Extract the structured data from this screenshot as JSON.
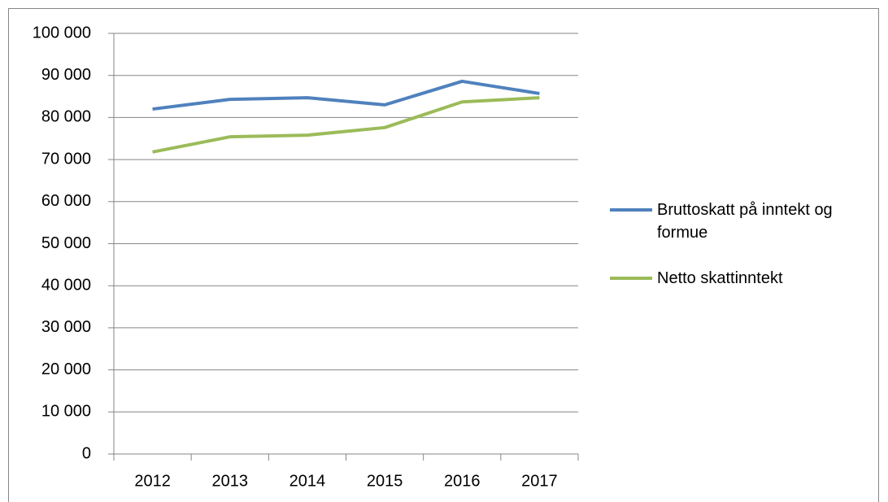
{
  "chart_data": {
    "type": "line",
    "categories": [
      "2012",
      "2013",
      "2014",
      "2015",
      "2016",
      "2017"
    ],
    "series": [
      {
        "name": "Bruttoskatt på inntekt og formue",
        "color": "#4f81bd",
        "values": [
          82000,
          84300,
          84700,
          83000,
          88600,
          85700
        ]
      },
      {
        "name": "Netto skattinntekt",
        "color": "#9bbb59",
        "values": [
          71800,
          75400,
          75800,
          77600,
          83700,
          84700
        ]
      }
    ],
    "ylim": [
      0,
      100000
    ],
    "yticks": [
      0,
      {
        "value": 10000,
        "label": "10 000"
      },
      {
        "value": 20000,
        "label": "20 000"
      },
      {
        "value": 30000,
        "label": "30 000"
      },
      {
        "value": 40000,
        "label": "40 000"
      },
      {
        "value": 50000,
        "label": "50 000"
      },
      {
        "value": 60000,
        "label": "60 000"
      },
      {
        "value": 70000,
        "label": "70 000"
      },
      {
        "value": 80000,
        "label": "80 000"
      },
      {
        "value": 90000,
        "label": "90 000"
      },
      {
        "value": 100000,
        "label": "100 000"
      }
    ],
    "grid": true,
    "legend": "right"
  }
}
